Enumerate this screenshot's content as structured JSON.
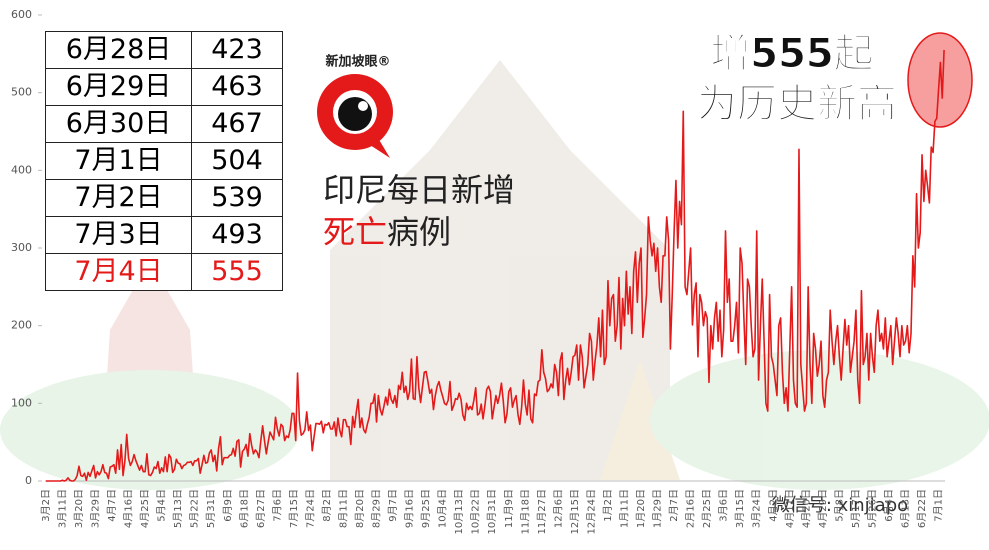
{
  "chart_data": {
    "type": "line",
    "title": "印尼每日新增",
    "title2": [
      {
        "text": "死亡",
        "color": "#e41a1a"
      },
      {
        "text": "病例",
        "color": "#222222"
      }
    ],
    "annotation": [
      "增555起",
      "为历史新高"
    ],
    "logo": "新加坡眼®",
    "watermark": "微信号: xinjiapo",
    "color": "#e41a1a",
    "ylim": [
      0,
      600
    ],
    "yticks": [
      0,
      100,
      200,
      300,
      400,
      500,
      600
    ],
    "categories": [
      "3月2日",
      null,
      null,
      null,
      null,
      null,
      null,
      null,
      null,
      "3月11日",
      null,
      null,
      null,
      null,
      null,
      null,
      null,
      null,
      "3月20日",
      null,
      null,
      null,
      null,
      null,
      null,
      null,
      null,
      "3月29日",
      null,
      null,
      null,
      null,
      null,
      null,
      null,
      null,
      "4月7日",
      null,
      null,
      null,
      null,
      null,
      null,
      null,
      null,
      "4月16日",
      null,
      null,
      null,
      null,
      null,
      null,
      null,
      null,
      "4月25日",
      null,
      null,
      null,
      null,
      null,
      null,
      null,
      null,
      "5月4日",
      null,
      null,
      null,
      null,
      null,
      null,
      null,
      null,
      "5月13日",
      null,
      null,
      null,
      null,
      null,
      null,
      null,
      null,
      "5月22日",
      null,
      null,
      null,
      null,
      null,
      null,
      null,
      null,
      "5月31日",
      null,
      null,
      null,
      null,
      null,
      null,
      null,
      null,
      "6月9日",
      null,
      null,
      null,
      null,
      null,
      null,
      null,
      null,
      "6月18日",
      null,
      null,
      null,
      null,
      null,
      null,
      null,
      null,
      "6月27日",
      null,
      null,
      null,
      null,
      null,
      null,
      null,
      null,
      "7月6日",
      null,
      null,
      null,
      null,
      null,
      null,
      null,
      null,
      "7月15日",
      null,
      null,
      null,
      null,
      null,
      null,
      null,
      null,
      "7月24日",
      null,
      null,
      null,
      null,
      null,
      null,
      null,
      null,
      "8月2日",
      null,
      null,
      null,
      null,
      null,
      null,
      null,
      null,
      "8月11日",
      null,
      null,
      null,
      null,
      null,
      null,
      null,
      null,
      "8月20日",
      null,
      null,
      null,
      null,
      null,
      null,
      null,
      null,
      "8月29日",
      null,
      null,
      null,
      null,
      null,
      null,
      null,
      null,
      "9月7日",
      null,
      null,
      null,
      null,
      null,
      null,
      null,
      null,
      "9月16日",
      null,
      null,
      null,
      null,
      null,
      null,
      null,
      null,
      "9月25日",
      null,
      null,
      null,
      null,
      null,
      null,
      null,
      null,
      "10月4日",
      null,
      null,
      null,
      null,
      null,
      null,
      null,
      null,
      "10月13日",
      null,
      null,
      null,
      null,
      null,
      null,
      null,
      null,
      "10月22日",
      null,
      null,
      null,
      null,
      null,
      null,
      null,
      null,
      "10月31日",
      null,
      null,
      null,
      null,
      null,
      null,
      null,
      null,
      "11月9日",
      null,
      null,
      null,
      null,
      null,
      null,
      null,
      null,
      "11月18日",
      null,
      null,
      null,
      null,
      null,
      null,
      null,
      null,
      "11月27日",
      null,
      null,
      null,
      null,
      null,
      null,
      null,
      null,
      "12月6日",
      null,
      null,
      null,
      null,
      null,
      null,
      null,
      null,
      "12月15日",
      null,
      null,
      null,
      null,
      null,
      null,
      null,
      null,
      "12月24日",
      null,
      null,
      null,
      null,
      null,
      null,
      null,
      null,
      "1月2日",
      null,
      null,
      null,
      null,
      null,
      null,
      null,
      null,
      "1月11日",
      null,
      null,
      null,
      null,
      null,
      null,
      null,
      null,
      "1月20日",
      null,
      null,
      null,
      null,
      null,
      null,
      null,
      null,
      "1月29日",
      null,
      null,
      null,
      null,
      null,
      null,
      null,
      null,
      "2月7日",
      null,
      null,
      null,
      null,
      null,
      null,
      null,
      null,
      "2月16日",
      null,
      null,
      null,
      null,
      null,
      null,
      null,
      null,
      "2月25日",
      null,
      null,
      null,
      null,
      null,
      null,
      null,
      null,
      "3月6日",
      null,
      null,
      null,
      null,
      null,
      null,
      null,
      null,
      "3月15日",
      null,
      null,
      null,
      null,
      null,
      null,
      null,
      null,
      "3月24日",
      null,
      null,
      null,
      null,
      null,
      null,
      null,
      null,
      "4月2日",
      null,
      null,
      null,
      null,
      null,
      null,
      null,
      null,
      "4月11日",
      null,
      null,
      null,
      null,
      null,
      null,
      null,
      null,
      "4月20日",
      null,
      null,
      null,
      null,
      null,
      null,
      null,
      null,
      "4月29日",
      null,
      null,
      null,
      null,
      null,
      null,
      null,
      null,
      "5月8日",
      null,
      null,
      null,
      null,
      null,
      null,
      null,
      null,
      "5月17日",
      null,
      null,
      null,
      null,
      null,
      null,
      null,
      null,
      "5月26日",
      null,
      null,
      null,
      null,
      null,
      null,
      null,
      null,
      "6月4日",
      null,
      null,
      null,
      null,
      null,
      null,
      null,
      null,
      "6月13日",
      null,
      null,
      null,
      null,
      null,
      null,
      null,
      null,
      "6月22日",
      null,
      null,
      null,
      null,
      null,
      null,
      null,
      null,
      "7月1日",
      null,
      null,
      null
    ],
    "values": [
      0,
      0,
      0,
      0,
      0,
      0,
      0,
      0,
      0,
      1,
      0,
      1,
      4,
      1,
      0,
      0,
      2,
      7,
      19,
      7,
      6,
      10,
      1,
      11,
      6,
      13,
      20,
      4,
      12,
      8,
      12,
      21,
      11,
      10,
      3,
      18,
      19,
      21,
      10,
      40,
      15,
      47,
      7,
      26,
      60,
      29,
      20,
      25,
      34,
      26,
      20,
      14,
      20,
      12,
      12,
      35,
      8,
      7,
      11,
      18,
      16,
      25,
      10,
      17,
      12,
      31,
      12,
      34,
      30,
      11,
      15,
      28,
      23,
      22,
      16,
      20,
      21,
      24,
      24,
      25,
      20,
      26,
      26,
      29,
      10,
      21,
      33,
      23,
      24,
      36,
      40,
      25,
      33,
      13,
      42,
      57,
      21,
      30,
      30,
      30,
      33,
      34,
      42,
      32,
      51,
      53,
      18,
      38,
      41,
      47,
      32,
      61,
      46,
      35,
      40,
      37,
      30,
      52,
      71,
      52,
      35,
      50,
      63,
      58,
      53,
      82,
      67,
      58,
      73,
      70,
      52,
      58,
      56,
      66,
      87,
      87,
      52,
      139,
      78,
      59,
      61,
      66,
      89,
      65,
      72,
      39,
      57,
      74,
      74,
      73,
      77,
      62,
      73,
      72,
      75,
      67,
      67,
      76,
      58,
      81,
      65,
      57,
      79,
      79,
      70,
      70,
      47,
      83,
      69,
      89,
      105,
      69,
      81,
      66,
      62,
      73,
      82,
      100,
      100,
      112,
      76,
      110,
      92,
      85,
      96,
      108,
      98,
      118,
      105,
      100,
      110,
      95,
      123,
      118,
      140,
      114,
      122,
      105,
      115,
      157,
      106,
      105,
      160,
      120,
      101,
      121,
      140,
      141,
      128,
      113,
      118,
      92,
      110,
      122,
      128,
      117,
      109,
      100,
      98,
      104,
      128,
      91,
      97,
      106,
      105,
      113,
      105,
      85,
      78,
      100,
      92,
      96,
      92,
      104,
      120,
      85,
      87,
      99,
      80,
      97,
      118,
      122,
      115,
      80,
      95,
      110,
      100,
      110,
      126,
      103,
      75,
      86,
      115,
      120,
      95,
      104,
      110,
      86,
      73,
      95,
      130,
      99,
      85,
      117,
      80,
      75,
      112,
      110,
      128,
      130,
      169,
      140,
      132,
      115,
      118,
      125,
      120,
      150,
      140,
      110,
      155,
      165,
      105,
      130,
      145,
      124,
      140,
      160,
      162,
      175,
      130,
      175,
      160,
      120,
      135,
      150,
      190,
      180,
      130,
      155,
      175,
      210,
      160,
      220,
      150,
      160,
      258,
      200,
      235,
      240,
      180,
      200,
      262,
      170,
      235,
      200,
      270,
      215,
      250,
      190,
      270,
      295,
      230,
      280,
      300,
      185,
      210,
      240,
      340,
      310,
      290,
      306,
      270,
      300,
      250,
      230,
      290,
      290,
      340,
      310,
      170,
      240,
      320,
      387,
      300,
      360,
      330,
      476,
      250,
      240,
      270,
      300,
      201,
      240,
      255,
      160,
      240,
      230,
      200,
      218,
      210,
      127,
      200,
      170,
      210,
      230,
      180,
      220,
      160,
      195,
      322,
      230,
      260,
      180,
      180,
      200,
      230,
      165,
      300,
      280,
      210,
      150,
      260,
      250,
      200,
      160,
      170,
      322,
      130,
      200,
      260,
      180,
      100,
      90,
      240,
      160,
      150,
      130,
      110,
      200,
      210,
      140,
      100,
      120,
      90,
      170,
      250,
      130,
      100,
      95,
      427,
      150,
      120,
      90,
      100,
      250,
      150,
      100,
      190,
      170,
      135,
      150,
      180,
      110,
      95,
      130,
      140,
      220,
      180,
      150,
      180,
      200,
      160,
      130,
      170,
      208,
      175,
      200,
      140,
      160,
      180,
      220,
      130,
      100,
      245,
      150,
      160,
      190,
      130,
      190,
      160,
      140,
      200,
      220,
      180,
      190,
      170,
      210,
      160,
      180,
      200,
      150,
      180,
      210,
      190,
      160,
      200,
      175,
      180,
      200,
      165,
      190,
      290,
      250,
      370,
      300,
      320,
      420,
      360,
      400,
      380,
      358,
      430,
      423,
      463,
      467,
      504,
      539,
      493,
      555
    ]
  },
  "table": {
    "rows": [
      [
        "6月28日",
        423
      ],
      [
        "6月29日",
        463
      ],
      [
        "6月30日",
        467
      ],
      [
        "7月1日",
        504
      ],
      [
        "7月2日",
        539
      ],
      [
        "7月3日",
        493
      ],
      [
        "7月4日",
        555
      ]
    ],
    "highlight_row": 6,
    "highlight_color": "#e41a1a"
  }
}
